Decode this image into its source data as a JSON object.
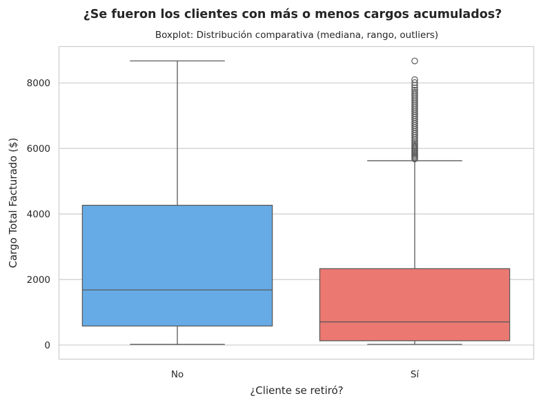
{
  "chart_data": {
    "type": "boxplot",
    "title": "¿Se fueron los clientes con más o menos cargos acumulados?",
    "subtitle": "Boxplot: Distribución comparativa (mediana, rango, outliers)",
    "xlabel": "¿Cliente se retiró?",
    "ylabel": "Cargo Total Facturado ($)",
    "ylim": [
      -420,
      9120
    ],
    "yticks": [
      0,
      2000,
      4000,
      6000,
      8000
    ],
    "grid": "horizontal",
    "categories": [
      "No",
      "Sí"
    ],
    "boxes": [
      {
        "category": "No",
        "color": "#66abe5",
        "whisker_low": 18,
        "q1": 580,
        "median": 1680,
        "q3": 4265,
        "whisker_high": 8672,
        "outliers": []
      },
      {
        "category": "Sí",
        "color": "#ec7872",
        "whisker_low": 19,
        "q1": 130,
        "median": 705,
        "q3": 2330,
        "whisker_high": 5625,
        "outliers": [
          5680,
          5720,
          5760,
          5800,
          5840,
          5880,
          5920,
          5960,
          6000,
          6040,
          6080,
          6130,
          6180,
          6230,
          6280,
          6340,
          6400,
          6460,
          6520,
          6580,
          6640,
          6700,
          6760,
          6820,
          6880,
          6940,
          7000,
          7060,
          7120,
          7180,
          7240,
          7300,
          7360,
          7420,
          7480,
          7540,
          7600,
          7660,
          7720,
          7780,
          7850,
          7930,
          8010,
          8100,
          8670
        ]
      }
    ]
  },
  "colors": {
    "edge": "#595959",
    "grid": "#cccccc",
    "spine": "#cccccc",
    "text": "#262626"
  }
}
